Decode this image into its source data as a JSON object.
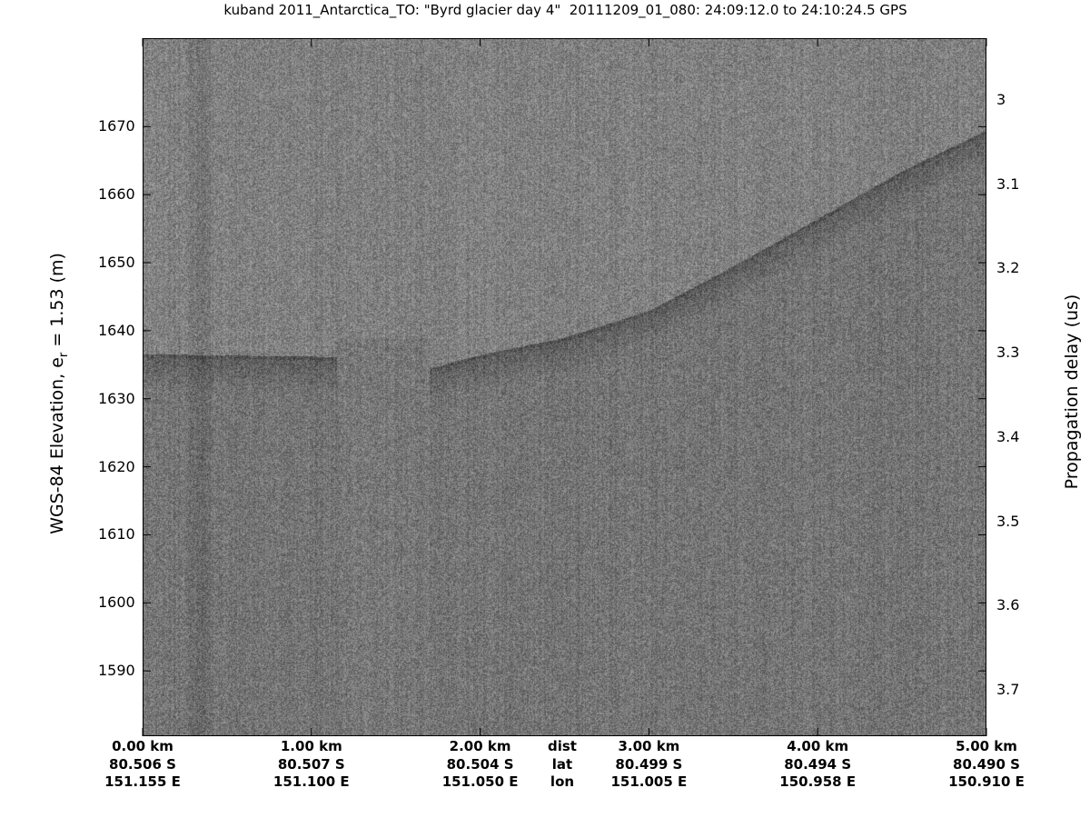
{
  "chart_data": {
    "type": "heatmap",
    "title": "kuband 2011_Antarctica_TO: \"Byrd glacier day 4\"  20111209_01_080: 24:09:12.0 to 24:10:24.5 GPS",
    "ylabel": "WGS-84 Elevation, e",
    "ylabel_sub": "r",
    "ylabel_tail": " = 1.53 (m)",
    "y2label": "Propagation delay (us)",
    "colormap": "gray",
    "xlim_km": [
      0,
      5
    ],
    "ylim": [
      1580.4,
      1683
    ],
    "y_ticks": [
      1590,
      1600,
      1610,
      1620,
      1630,
      1640,
      1650,
      1660,
      1670
    ],
    "y2_ticks": [
      3,
      3.1,
      3.2,
      3.3,
      3.4,
      3.5,
      3.6,
      3.7
    ],
    "x_row_labels": [
      "dist",
      "lat",
      "lon"
    ],
    "x_ticks": [
      {
        "dist": "0.00 km",
        "lat": "80.506 S",
        "lon": "151.155 E"
      },
      {
        "dist": "1.00 km",
        "lat": "80.507 S",
        "lon": "151.100 E"
      },
      {
        "dist": "2.00 km",
        "lat": "80.504 S",
        "lon": "151.050 E"
      },
      {
        "dist": "3.00 km",
        "lat": "80.499 S",
        "lon": "151.005 E"
      },
      {
        "dist": "4.00 km",
        "lat": "80.494 S",
        "lon": "150.958 E"
      },
      {
        "dist": "5.00 km",
        "lat": "80.490 S",
        "lon": "150.910 E"
      }
    ],
    "surface_elevation": [
      {
        "km": 0.0,
        "elev": 1636.6
      },
      {
        "km": 1.15,
        "elev": 1636.2
      },
      {
        "km": 1.7,
        "elev": 1634.5
      },
      {
        "km": 2.0,
        "elev": 1636.5
      },
      {
        "km": 2.5,
        "elev": 1639.0
      },
      {
        "km": 3.0,
        "elev": 1643.0
      },
      {
        "km": 3.5,
        "elev": 1649.5
      },
      {
        "km": 4.0,
        "elev": 1656.5
      },
      {
        "km": 4.5,
        "elev": 1663.5
      },
      {
        "km": 5.0,
        "elev": 1669.5
      }
    ]
  }
}
